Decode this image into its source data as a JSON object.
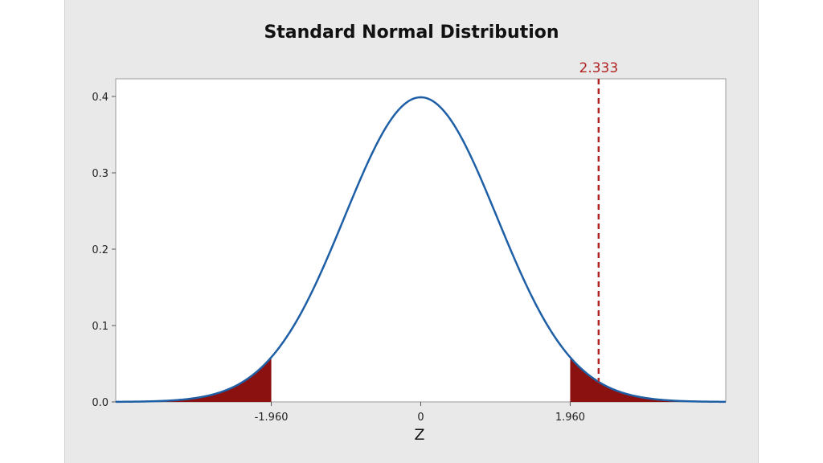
{
  "chart_data": {
    "type": "area",
    "title": "Standard Normal Distribution",
    "xlabel": "Z",
    "ylabel": "",
    "xlim": [
      -4,
      4
    ],
    "ylim": [
      0,
      0.42
    ],
    "x_ticks": [
      {
        "value": -1.96,
        "label": "-1.960"
      },
      {
        "value": 0,
        "label": "0"
      },
      {
        "value": 1.96,
        "label": "1.960"
      }
    ],
    "y_ticks": [
      {
        "value": 0.0,
        "label": "0.0"
      },
      {
        "value": 0.1,
        "label": "0.1"
      },
      {
        "value": 0.2,
        "label": "0.2"
      },
      {
        "value": 0.3,
        "label": "0.3"
      },
      {
        "value": 0.4,
        "label": "0.4"
      }
    ],
    "curve": {
      "distribution": "normal",
      "mean": 0,
      "sd": 1,
      "color": "#1f5fa6"
    },
    "shaded_regions": [
      {
        "from": -4,
        "to": -1.96,
        "color": "#8b1010"
      },
      {
        "from": 1.96,
        "to": 4,
        "color": "#8b1010"
      }
    ],
    "reference_line": {
      "x": 2.333,
      "label": "2.333",
      "color": "#b22222",
      "style": "dashed"
    },
    "grid": false
  }
}
